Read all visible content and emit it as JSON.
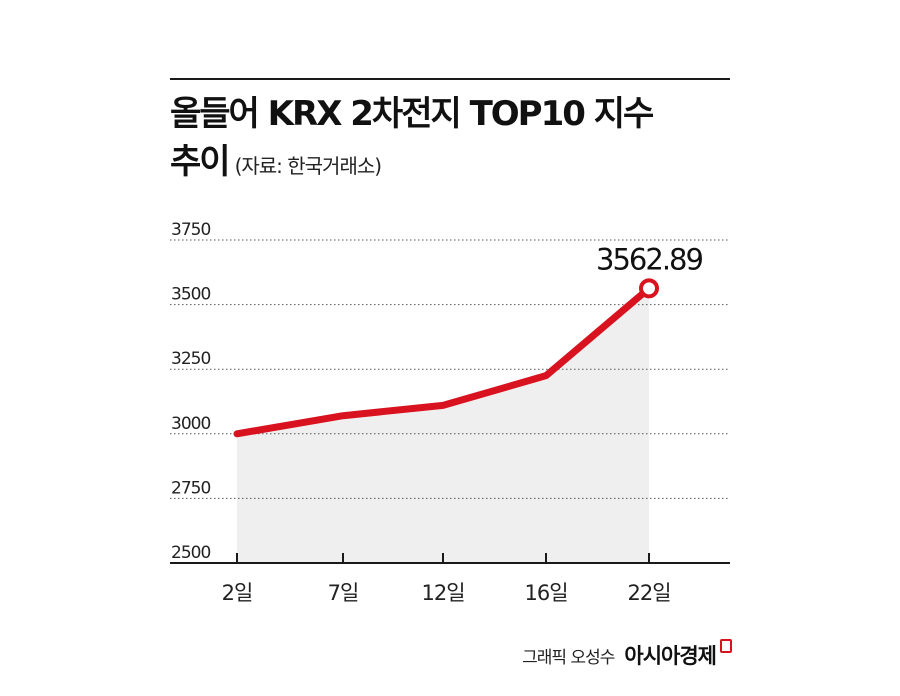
{
  "header": {
    "title_line1": "올들어 KRX 2차전지 TOP10 지수",
    "title_line2": "추이",
    "source": "(자료: 한국거래소)"
  },
  "chart_data": {
    "type": "area",
    "title": "올들어 KRX 2차전지 TOP10 지수 추이",
    "categories": [
      "2일",
      "7일",
      "12일",
      "16일",
      "22일"
    ],
    "series": [
      {
        "values": [
          3000,
          3070,
          3110,
          3225,
          3562.89
        ]
      }
    ],
    "yticks": [
      2500,
      2750,
      3000,
      3250,
      3500,
      3750
    ],
    "ylim": [
      2500,
      3750
    ],
    "grid": true,
    "annotation": {
      "label": "3562.89",
      "index": 4
    },
    "colors": {
      "line": "#d9121f",
      "fill": "#efefef",
      "grid": "#555555",
      "marker_fill": "#ffffff"
    }
  },
  "footer": {
    "byline": "그래픽 오성수",
    "brand": "아시아경제"
  }
}
